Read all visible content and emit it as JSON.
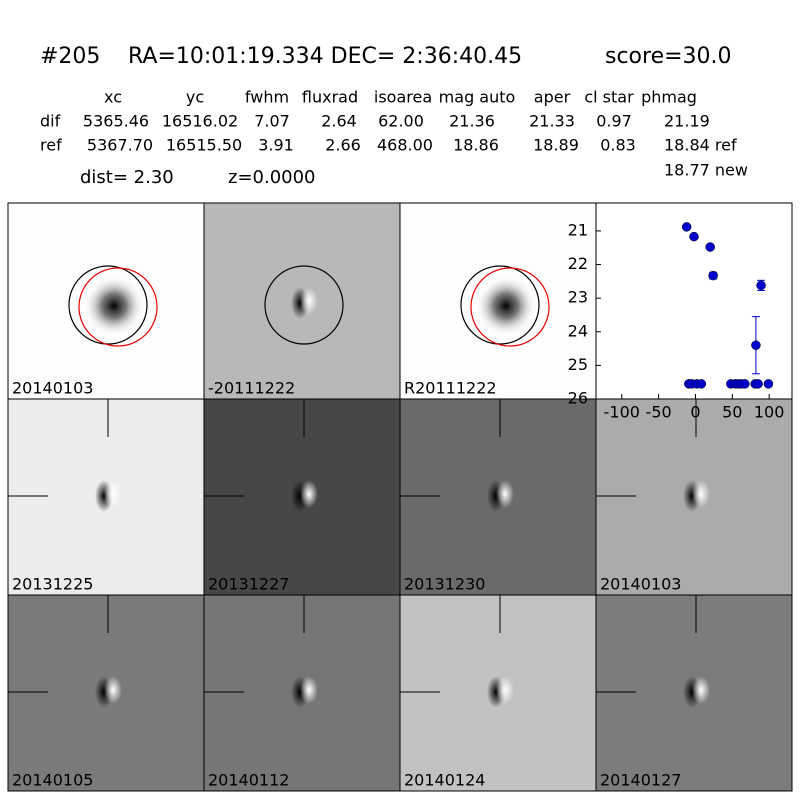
{
  "header": {
    "id": "#205",
    "coords": "RA=10:01:19.334 DEC= 2:36:40.45",
    "score": "score=30.0"
  },
  "table": {
    "columns": [
      "xc",
      "yc",
      "fwhm",
      "fluxrad",
      "isoarea",
      "mag auto",
      "aper",
      "cl star",
      "phmag"
    ],
    "rows": [
      [
        "dif",
        "5365.46",
        "16516.02",
        "7.07",
        "2.64",
        "62.00",
        "21.36",
        "21.33",
        "0.97",
        "21.19"
      ],
      [
        "ref",
        "5367.70",
        "16515.50",
        "3.91",
        "2.66",
        "468.00",
        "18.86",
        "18.89",
        "0.83",
        "18.84 ref"
      ]
    ],
    "extra": "18.77 new",
    "dist": "dist=  2.30",
    "z": "z=0.0000"
  },
  "panels": [
    {
      "label": "20140103",
      "background": "#fdfdfd",
      "label_color": "#000000"
    },
    {
      "label": "-20111222",
      "background": "#b8b8b8",
      "label_color": "#000000"
    },
    {
      "label": "R20111222",
      "background": "#fdfdfd",
      "label_color": "#000000"
    },
    {
      "label": "20131225",
      "background": "#ececec",
      "label_color": "#000000"
    },
    {
      "label": "20131227",
      "background": "#474747",
      "label_color": "#000000"
    },
    {
      "label": "20131230",
      "background": "#6a6a6a",
      "label_color": "#000000"
    },
    {
      "label": "20140103",
      "background": "#ababab",
      "label_color": "#ff0000"
    },
    {
      "label": "20140105",
      "background": "#7a7a7a",
      "label_color": "#000000"
    },
    {
      "label": "20140112",
      "background": "#767676",
      "label_color": "#000000"
    },
    {
      "label": "20140124",
      "background": "#c2c2c2",
      "label_color": "#000000"
    },
    {
      "label": "20140127",
      "background": "#7c7c7c",
      "label_color": "#000000"
    }
  ],
  "chart_data": {
    "type": "scatter",
    "color": "#0000cc",
    "x": [
      -12,
      -2,
      20,
      24,
      82,
      89,
      -9,
      -5,
      2,
      8,
      48,
      54,
      58,
      62,
      67,
      81,
      85,
      99
    ],
    "values": [
      20.88,
      21.17,
      21.48,
      22.33,
      24.4,
      22.62,
      25.55,
      25.55,
      25.55,
      25.55,
      25.55,
      25.55,
      25.55,
      25.55,
      25.55,
      25.55,
      25.55,
      25.55
    ],
    "errors": [
      0.05,
      0.05,
      0.05,
      0.1,
      0.85,
      0.15,
      0.05,
      0.05,
      0.05,
      0.05,
      0.05,
      0.05,
      0.05,
      0.05,
      0.05,
      0.05,
      0.05,
      0.05
    ],
    "xlim": [
      -135,
      131
    ],
    "ylim": [
      26,
      20.17
    ],
    "xticks": [
      -100,
      -50,
      0,
      50,
      100
    ],
    "yticks": [
      21,
      22,
      23,
      24,
      25,
      26
    ]
  }
}
